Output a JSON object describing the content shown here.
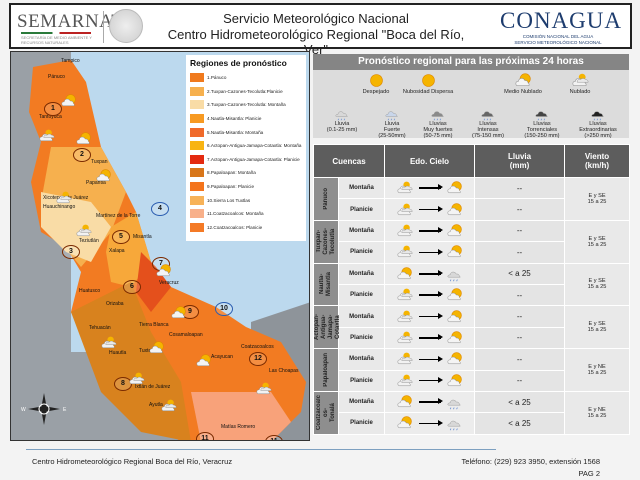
{
  "header": {
    "semarnat_logo": "SEMARNAT",
    "semarnat_subtitle": "SECRETARÍA DE MEDIO AMBIENTE Y RECURSOS NATURALES",
    "title_line1": "Servicio Meteorológico Nacional",
    "title_line2": "Centro Hidrometeorológico Regional \"Boca del Río, Ver\"",
    "conagua_logo": "CONAGUA",
    "conagua_line1": "COMISIÓN NACIONAL DEL AGUA",
    "conagua_line2": "SERVICIO METEOROLÓGICO NACIONAL"
  },
  "map": {
    "legend_title": "Regiones de pronóstico",
    "legend": [
      {
        "label": "1.Pánuco",
        "color": "#f07a1e"
      },
      {
        "label": "2.Tuxpan-Cazones-Tecolutla:Planicie",
        "color": "#f6b04e"
      },
      {
        "label": "3.Tuxpan-Cazones-Tecolutla: Montaña",
        "color": "#f9dca6"
      },
      {
        "label": "4.Nautla-Misantla: Planicie",
        "color": "#f79a22"
      },
      {
        "label": "5.Nautla-Misantla: Montaña",
        "color": "#f06a2a"
      },
      {
        "label": "6.Actopan-Antigua-Jamapa-Cotaxtla: Montaña",
        "color": "#f8b412"
      },
      {
        "label": "7.Actopan-Antigua-Jamapa-Cotaxtla: Planicie",
        "color": "#e42a10"
      },
      {
        "label": "8.Papaloapan: Montaña",
        "color": "#d8761a"
      },
      {
        "label": "9.Papaloapan: Planicie",
        "color": "#f4741c"
      },
      {
        "label": "10.Sierra Los Tuxtlas",
        "color": "#f7b258"
      },
      {
        "label": "11.Coatzacoalcos: Montaña",
        "color": "#f8b08a"
      },
      {
        "label": "12.Coatzacoalcos: Planicie",
        "color": "#f47a26"
      }
    ],
    "cities": [
      "Tampico",
      "Pánuco",
      "Tantoyuca",
      "Tuxpan",
      "Papantla",
      "Xicotepec de Juárez",
      "Huauchinango",
      "Martínez de la Torre",
      "Misantla",
      "Teziutlán",
      "Xalapa",
      "Veracruz",
      "Huatusco",
      "Orizaba",
      "Tehuacán",
      "Tierra Blanca",
      "Cosamaloapan",
      "Tuxtepec",
      "Huautla",
      "Ixtlán de Juárez",
      "Ayutla",
      "Acayucan",
      "Coatzacoalcos",
      "Las Choapas",
      "Matías Romero"
    ],
    "region_markers": [
      "1",
      "2",
      "3",
      "4",
      "5",
      "6",
      "7",
      "8",
      "9",
      "10",
      "11",
      "12",
      "11"
    ],
    "compass": {
      "west": "W",
      "east": "E"
    }
  },
  "forecast": {
    "banner": "Pronóstico regional para las próximas 24 horas",
    "icon_legend": [
      {
        "label": "Despejado",
        "icon": "sun-icon"
      },
      {
        "label": "Nubosidad Dispersa",
        "icon": "sun-icon"
      },
      {
        "label": "Medio Nublado",
        "icon": "partly-cloudy-icon"
      },
      {
        "label": "Nublado",
        "icon": "cloudy-icon"
      },
      {
        "label": "Lluvia\n(0.1-25 mm)",
        "icon": "rain-light-icon"
      },
      {
        "label": "Lluvia\nFuerte\n(25-50mm)",
        "icon": "rain-heavy-icon"
      },
      {
        "label": "Lluvias\nMuy fuertes\n(50-75 mm)",
        "icon": "rain-veryheavy-icon"
      },
      {
        "label": "Lluvias\nIntensas\n(75-150 mm)",
        "icon": "rain-intense-icon"
      },
      {
        "label": "Lluvias\nTorrenciales\n(150-250 mm)",
        "icon": "rain-torrential-icon"
      },
      {
        "label": "Lluvias\nExtraordinarias\n(>250 mm)",
        "icon": "rain-extraordinary-icon"
      }
    ],
    "table": {
      "headers": {
        "cuencas": "Cuencas",
        "cielo": "Edo. Cielo",
        "lluvia": "Lluvia\n(mm)",
        "viento": "Viento\n(km/h)"
      },
      "basins": [
        {
          "name": "Pánuco",
          "wind": "E y SE\n15 a 25",
          "rows": [
            {
              "zone": "Montaña",
              "from": "cloudy",
              "to": "partly-cloudy",
              "rain": "--"
            },
            {
              "zone": "Planicie",
              "from": "cloudy",
              "to": "partly-cloudy",
              "rain": "--"
            }
          ]
        },
        {
          "name": "Tuxpan-\nCazones-\nTecolutla",
          "wind": "E y SE\n15 a 25",
          "rows": [
            {
              "zone": "Montaña",
              "from": "cloudy",
              "to": "partly-cloudy",
              "rain": "--"
            },
            {
              "zone": "Planicie",
              "from": "cloudy",
              "to": "partly-cloudy",
              "rain": "--"
            }
          ]
        },
        {
          "name": "Nautla-\nMisantla",
          "wind": "E y SE\n15 a 25",
          "rows": [
            {
              "zone": "Montaña",
              "from": "partly-cloudy",
              "to": "rain-light",
              "rain": "< a 25"
            },
            {
              "zone": "Planicie",
              "from": "cloudy",
              "to": "partly-cloudy",
              "rain": "--"
            }
          ]
        },
        {
          "name": "Actopan-\nAntigua-\nJamapa-\nCotaxtla",
          "wind": "E y SE\n15 a 25",
          "rows": [
            {
              "zone": "Montaña",
              "from": "cloudy",
              "to": "partly-cloudy",
              "rain": "--"
            },
            {
              "zone": "Planicie",
              "from": "cloudy",
              "to": "partly-cloudy",
              "rain": "--"
            }
          ]
        },
        {
          "name": "Papaloapan",
          "wind": "E y NE\n15 a 25",
          "rows": [
            {
              "zone": "Montaña",
              "from": "cloudy",
              "to": "partly-cloudy",
              "rain": "--"
            },
            {
              "zone": "Planicie",
              "from": "cloudy",
              "to": "partly-cloudy",
              "rain": "--"
            }
          ]
        },
        {
          "name": "Coatzacoalc\nos-\nTonalá",
          "wind": "E y NE\n15 a 25",
          "rows": [
            {
              "zone": "Montaña",
              "from": "partly-cloudy",
              "to": "rain-light",
              "rain": "< a 25"
            },
            {
              "zone": "Planicie",
              "from": "partly-cloudy",
              "to": "rain-light",
              "rain": "< a 25"
            }
          ]
        }
      ]
    }
  },
  "footer": {
    "left": "Centro Hidrometeorológico Regional Boca del Río, Veracruz",
    "phone": "Teléfono: (229) 923 3950, extensión 1568",
    "page": "PAG 2"
  }
}
